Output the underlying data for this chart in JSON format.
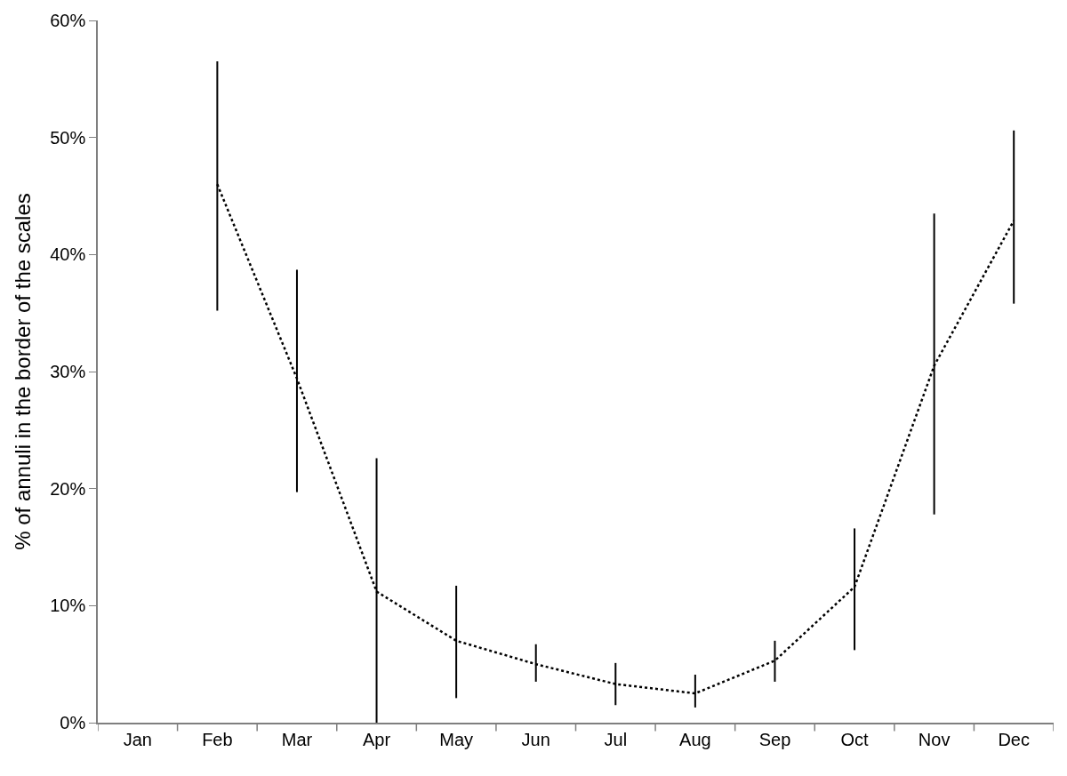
{
  "chart_data": {
    "type": "line",
    "ylabel": "% of annuli in the border of the scales",
    "categories": [
      "Jan",
      "Feb",
      "Mar",
      "Apr",
      "May",
      "Jun",
      "Jul",
      "Aug",
      "Sep",
      "Oct",
      "Nov",
      "Dec"
    ],
    "series": [
      {
        "color": "#000000",
        "line_style": "dotted",
        "marker": "none",
        "values": [
          null,
          46.0,
          29.4,
          11.2,
          7.0,
          5.0,
          3.3,
          2.5,
          5.3,
          11.6,
          30.5,
          42.9
        ],
        "errors": [
          null,
          [
            35.2,
            56.5
          ],
          [
            19.7,
            38.7
          ],
          [
            0,
            22.6
          ],
          [
            2.1,
            11.7
          ],
          [
            3.5,
            6.7
          ],
          [
            1.5,
            5.1
          ],
          [
            1.3,
            4.1
          ],
          [
            3.5,
            7.0
          ],
          [
            6.2,
            16.6
          ],
          [
            17.8,
            43.5
          ],
          [
            35.8,
            50.6
          ]
        ]
      }
    ],
    "yticks": [
      {
        "value": 0,
        "label": "0%"
      },
      {
        "value": 10,
        "label": "10%"
      },
      {
        "value": 20,
        "label": "20%"
      },
      {
        "value": 30,
        "label": "30%"
      },
      {
        "value": 40,
        "label": "40%"
      },
      {
        "value": 50,
        "label": "50%"
      },
      {
        "value": 60,
        "label": "60%"
      }
    ],
    "ylim": [
      0,
      60
    ]
  }
}
